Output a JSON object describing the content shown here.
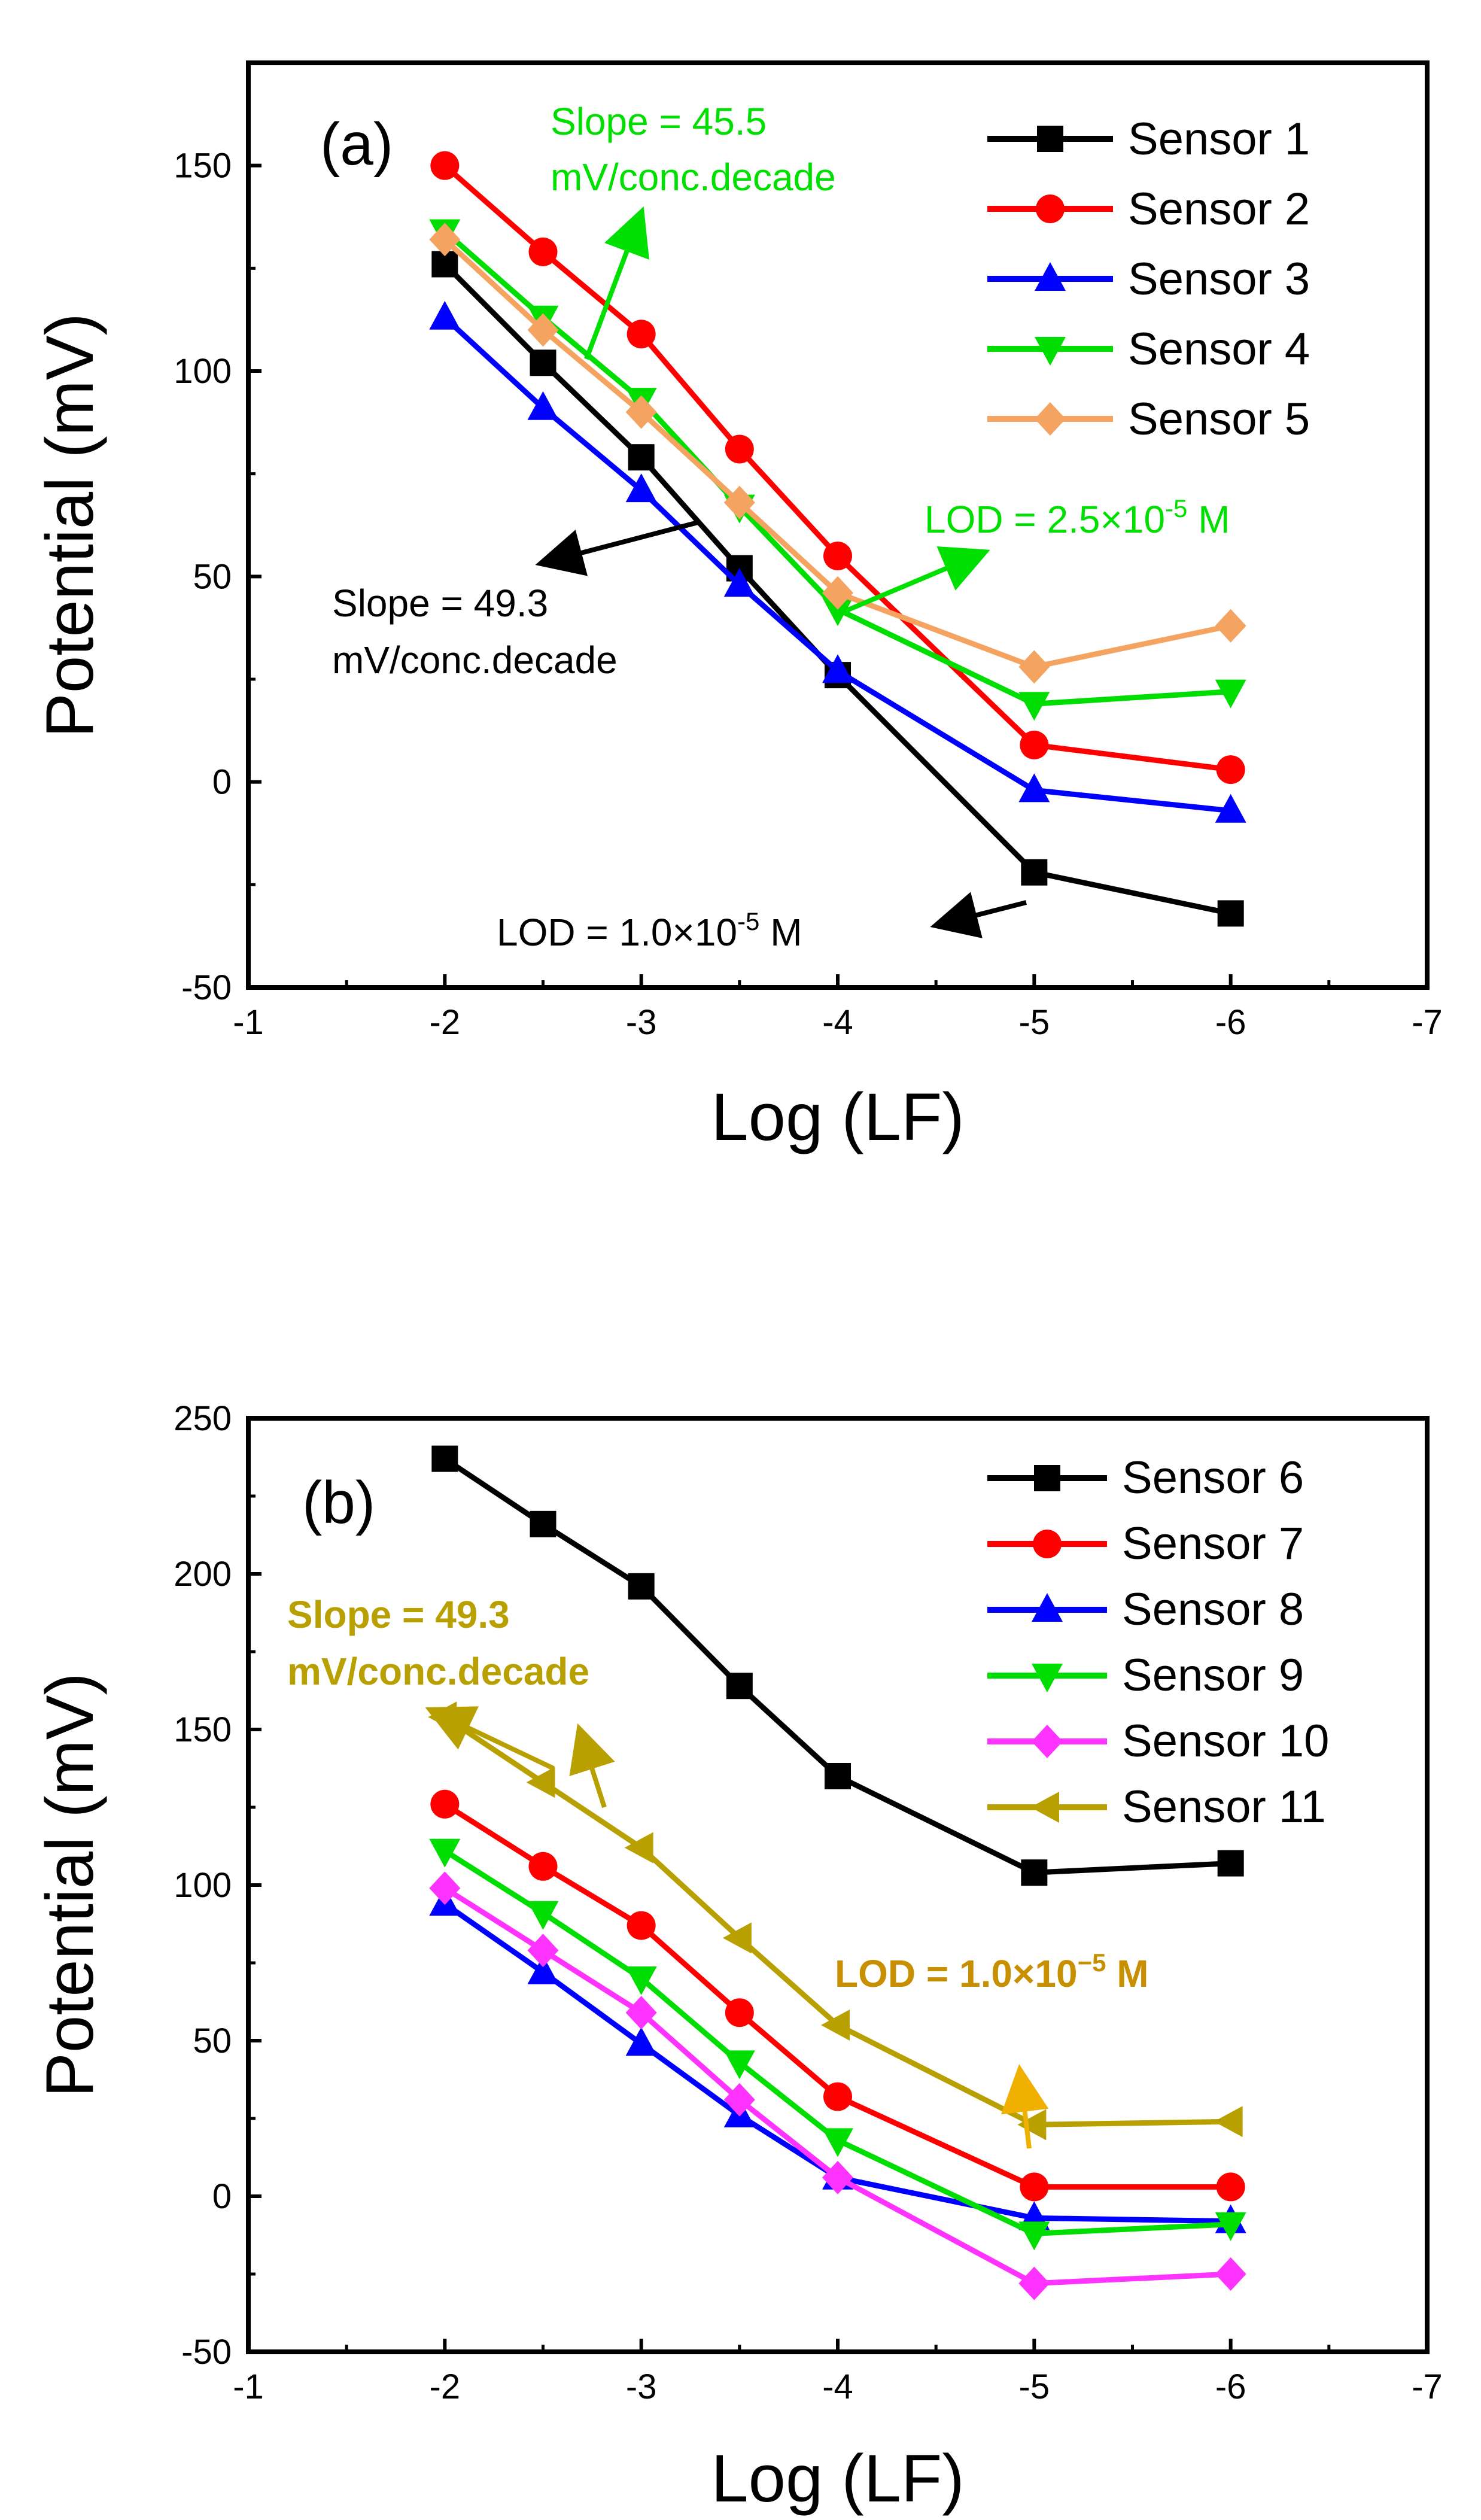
{
  "chart_data": [
    {
      "type": "line",
      "panel_label": "(a)",
      "xlabel": "Log (LF)",
      "ylabel": "Potential (mV)",
      "xlim": [
        -1,
        -7
      ],
      "ylim": [
        -50,
        175
      ],
      "x_ticks": [
        -1,
        -2,
        -3,
        -4,
        -5,
        -6,
        -7
      ],
      "y_ticks": [
        -50,
        0,
        50,
        100,
        150
      ],
      "x": [
        -2,
        -2.5,
        -3,
        -3.5,
        -4,
        -5,
        -6
      ],
      "legend_position": "top-right",
      "series": [
        {
          "name": "Sensor 1",
          "color": "#000000",
          "marker": "square",
          "values": [
            126,
            102,
            79,
            52,
            26,
            -22,
            -32
          ]
        },
        {
          "name": "Sensor 2",
          "color": "#ff0000",
          "marker": "circle",
          "values": [
            150,
            129,
            109,
            81,
            55,
            9,
            3
          ]
        },
        {
          "name": "Sensor 3",
          "color": "#0000ff",
          "marker": "triangle-up",
          "values": [
            113,
            91,
            71,
            48,
            27,
            -2,
            -7
          ]
        },
        {
          "name": "Sensor 4",
          "color": "#00dd00",
          "marker": "triangle-down",
          "values": [
            134,
            113,
            93,
            67,
            42,
            19,
            22
          ]
        },
        {
          "name": "Sensor 5",
          "color": "#f4a460",
          "marker": "diamond",
          "values": [
            132,
            110,
            90,
            68,
            46,
            28,
            38
          ]
        }
      ],
      "annotations": [
        {
          "lines": [
            "Slope = 45.5",
            "mV/conc.decade"
          ],
          "color": "#00e000",
          "bold": false
        },
        {
          "lines": [
            "Slope = 49.3",
            "mV/conc.decade"
          ],
          "color": "#000000",
          "bold": false
        },
        {
          "lines": [
            "LOD = 2.5×10",
            "-5",
            " M"
          ],
          "color": "#00e000",
          "bold": false
        },
        {
          "lines": [
            "LOD = 1.0×10",
            "-5",
            " M"
          ],
          "color": "#000000",
          "bold": false
        }
      ]
    },
    {
      "type": "line",
      "panel_label": "(b)",
      "xlabel": "Log (LF)",
      "ylabel": "Potential (mV)",
      "xlim": [
        -1,
        -7
      ],
      "ylim": [
        -50,
        250
      ],
      "x_ticks": [
        -1,
        -2,
        -3,
        -4,
        -5,
        -6,
        -7
      ],
      "y_ticks": [
        -50,
        0,
        50,
        100,
        150,
        200,
        250
      ],
      "x": [
        -2,
        -2.5,
        -3,
        -3.5,
        -4,
        -5,
        -6
      ],
      "legend_position": "top-right",
      "series": [
        {
          "name": "Sensor 6",
          "color": "#000000",
          "marker": "square",
          "values": [
            237,
            216,
            196,
            164,
            135,
            104,
            107
          ]
        },
        {
          "name": "Sensor 7",
          "color": "#ff0000",
          "marker": "circle",
          "values": [
            126,
            106,
            87,
            59,
            32,
            3,
            3
          ]
        },
        {
          "name": "Sensor 8",
          "color": "#0000ff",
          "marker": "triangle-up",
          "values": [
            94,
            72,
            49,
            26,
            6,
            -7,
            -8
          ]
        },
        {
          "name": "Sensor 9",
          "color": "#00dd00",
          "marker": "triangle-down",
          "values": [
            111,
            91,
            70,
            43,
            18,
            -12,
            -9
          ]
        },
        {
          "name": "Sensor 10",
          "color": "#ff33ff",
          "marker": "diamond",
          "values": [
            99,
            79,
            59,
            31,
            6,
            -28,
            -25
          ]
        },
        {
          "name": "Sensor 11",
          "color": "#b8a000",
          "marker": "triangle-left",
          "values": [
            154,
            133,
            112,
            83,
            55,
            23,
            24
          ]
        }
      ],
      "annotations": [
        {
          "lines": [
            "Slope = 49.3",
            "mV/conc.decade"
          ],
          "color": "#b8a000",
          "bold": true
        },
        {
          "lines": [
            "LOD = 1.0×10",
            "−5",
            " M"
          ],
          "color": "#c89000",
          "bold": true
        }
      ]
    }
  ]
}
